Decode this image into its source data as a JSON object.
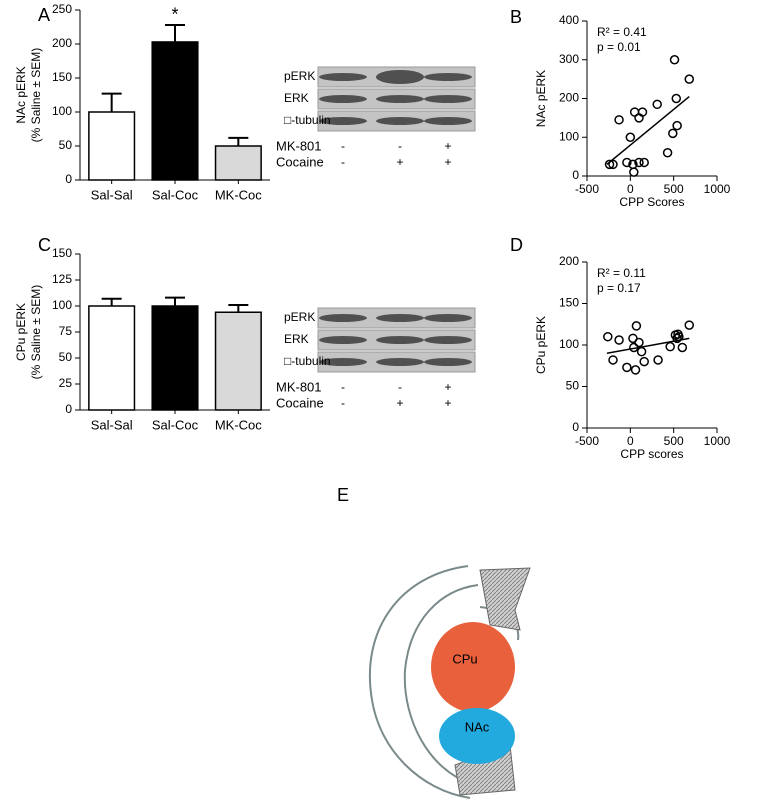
{
  "chart_data": [
    {
      "type": "bar",
      "panel_label": "A",
      "ylabel": [
        "NAc pERK",
        "(% Saline ± SEM)"
      ],
      "categories": [
        "Sal-Sal",
        "Sal-Coc",
        "MK-Coc"
      ],
      "values": [
        100,
        203,
        50
      ],
      "errors": [
        27,
        25,
        12
      ],
      "colors": [
        "#ffffff",
        "#000000",
        "#d9d9d9"
      ],
      "ylim": [
        0,
        250
      ],
      "yticks": [
        0,
        50,
        100,
        150,
        200,
        250
      ],
      "annotations": [
        {
          "category": "Sal-Coc",
          "text": "*"
        }
      ]
    },
    {
      "type": "scatter",
      "panel_label": "B",
      "xlabel": "CPP Scores",
      "ylabel": "NAc pERK",
      "x": [
        -240,
        -200,
        -130,
        -40,
        0,
        30,
        40,
        50,
        100,
        100,
        140,
        160,
        310,
        430,
        490,
        510,
        530,
        540,
        680
      ],
      "y": [
        30,
        30,
        145,
        35,
        100,
        30,
        10,
        165,
        150,
        35,
        165,
        35,
        185,
        60,
        110,
        300,
        200,
        130,
        250
      ],
      "fit": {
        "x": [
          -270,
          680
        ],
        "y": [
          30,
          205
        ]
      },
      "xlim": [
        -500,
        1000
      ],
      "xticks": [
        -500,
        0,
        500,
        1000
      ],
      "ylim": [
        0,
        400
      ],
      "yticks": [
        0,
        100,
        200,
        300,
        400
      ],
      "annotations": [
        "R² = 0.41",
        "p = 0.01"
      ]
    },
    {
      "type": "bar",
      "panel_label": "C",
      "ylabel": [
        "CPu pERK",
        "(% Saline ± SEM)"
      ],
      "categories": [
        "Sal-Sal",
        "Sal-Coc",
        "MK-Coc"
      ],
      "values": [
        100,
        100,
        94
      ],
      "errors": [
        7,
        8,
        7
      ],
      "colors": [
        "#ffffff",
        "#000000",
        "#d9d9d9"
      ],
      "ylim": [
        0,
        150
      ],
      "yticks": [
        0,
        25,
        50,
        75,
        100,
        125,
        150
      ]
    },
    {
      "type": "scatter",
      "panel_label": "D",
      "xlabel": "CPP scores",
      "ylabel": "CPu pERK",
      "x": [
        -260,
        -200,
        -130,
        -40,
        30,
        40,
        60,
        70,
        100,
        130,
        160,
        320,
        460,
        520,
        540,
        550,
        560,
        600,
        680
      ],
      "y": [
        110,
        82,
        106,
        73,
        108,
        97,
        70,
        123,
        103,
        92,
        80,
        82,
        98,
        112,
        108,
        113,
        110,
        97,
        124
      ],
      "fit": {
        "x": [
          -270,
          680
        ],
        "y": [
          90,
          108
        ]
      },
      "xlim": [
        -500,
        1000
      ],
      "xticks": [
        -500,
        0,
        500,
        1000
      ],
      "ylim": [
        0,
        200
      ],
      "yticks": [
        0,
        50,
        100,
        150,
        200
      ],
      "annotations": [
        "R² = 0.11",
        "p = 0.17"
      ]
    }
  ],
  "blots": [
    {
      "rows": [
        "pERK",
        "ERK",
        "□-tubulin"
      ],
      "conditions": [
        {
          "label": "MK-801",
          "marks": [
            "-",
            "-",
            "+"
          ]
        },
        {
          "label": "Cocaine",
          "marks": [
            "-",
            "+",
            "+"
          ]
        }
      ]
    },
    {
      "rows": [
        "pERK",
        "ERK",
        "□-tubulin"
      ],
      "conditions": [
        {
          "label": "MK-801",
          "marks": [
            "-",
            "-",
            "+"
          ]
        },
        {
          "label": "Cocaine",
          "marks": [
            "-",
            "+",
            "+"
          ]
        }
      ]
    }
  ],
  "diagram": {
    "panel_label": "E",
    "regions": [
      "CPu",
      "NAc"
    ]
  }
}
